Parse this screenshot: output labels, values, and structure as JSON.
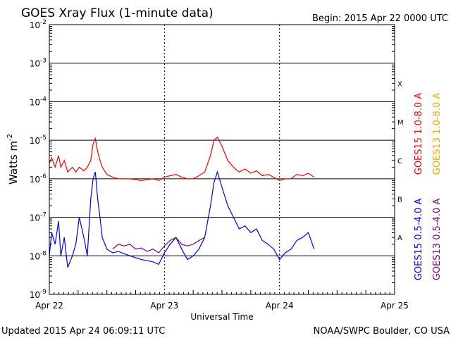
{
  "chart_data": {
    "type": "line",
    "title": "GOES Xray Flux (1-minute data)",
    "begin_label": "Begin:  2015 Apr 22 0000 UTC",
    "xlabel": "Universal Time",
    "ylabel_base": "Watts m",
    "ylabel_exp": "-2",
    "x_ticks": [
      "Apr 22",
      "Apr 23",
      "Apr 24",
      "Apr 25"
    ],
    "xlim_days": [
      0,
      3
    ],
    "y_scale": "log",
    "ylim": [
      1e-09,
      0.01
    ],
    "y_ticks": [
      {
        "base": "10",
        "exp": "-2",
        "value": 0.01
      },
      {
        "base": "10",
        "exp": "-3",
        "value": 0.001
      },
      {
        "base": "10",
        "exp": "-4",
        "value": 0.0001
      },
      {
        "base": "10",
        "exp": "-5",
        "value": 1e-05
      },
      {
        "base": "10",
        "exp": "-6",
        "value": 1e-06
      },
      {
        "base": "10",
        "exp": "-7",
        "value": 1e-07
      },
      {
        "base": "10",
        "exp": "-8",
        "value": 1e-08
      },
      {
        "base": "10",
        "exp": "-9",
        "value": 1e-09
      }
    ],
    "flare_classes": [
      {
        "label": "X",
        "value": 0.0003
      },
      {
        "label": "M",
        "value": 3e-05
      },
      {
        "label": "C",
        "value": 3e-06
      },
      {
        "label": "B",
        "value": 3e-07
      },
      {
        "label": "A",
        "value": 3e-08
      }
    ],
    "grid": true,
    "legend_position": "right",
    "series": [
      {
        "name": "GOES15 1.0-8.0 A",
        "color": "#ff0000",
        "x": [
          0.0,
          0.02,
          0.05,
          0.08,
          0.1,
          0.13,
          0.16,
          0.2,
          0.23,
          0.26,
          0.3,
          0.33,
          0.36,
          0.38,
          0.4,
          0.42,
          0.44,
          0.46,
          0.5,
          0.55,
          0.6,
          0.7,
          0.8,
          0.9,
          0.95,
          1.0,
          1.05,
          1.1,
          1.15,
          1.2,
          1.25,
          1.3,
          1.35,
          1.4,
          1.43,
          1.46,
          1.5,
          1.55,
          1.6,
          1.65,
          1.7,
          1.75,
          1.8,
          1.85,
          1.9,
          1.95,
          2.0,
          2.05,
          2.1,
          2.15,
          2.2,
          2.25,
          2.3
        ],
        "y": [
          2.5e-06,
          3.5e-06,
          2e-06,
          4e-06,
          2e-06,
          3e-06,
          1.5e-06,
          2e-06,
          1.5e-06,
          2e-06,
          1.6e-06,
          2e-06,
          3e-06,
          8e-06,
          1.1e-05,
          5e-06,
          3e-06,
          2e-06,
          1.3e-06,
          1.1e-06,
          1e-06,
          1e-06,
          9e-07,
          1e-06,
          9e-07,
          1.1e-06,
          1.2e-06,
          1.3e-06,
          1.1e-06,
          1e-06,
          1e-06,
          1.2e-06,
          1.5e-06,
          4e-06,
          1e-05,
          1.2e-05,
          7e-06,
          3e-06,
          2e-06,
          1.5e-06,
          1.8e-06,
          1.4e-06,
          1.6e-06,
          1.2e-06,
          1.3e-06,
          1.1e-06,
          9e-07,
          1e-06,
          1e-06,
          1.3e-06,
          1.2e-06,
          1.4e-06,
          1.1e-06
        ]
      },
      {
        "name": "GOES13 1.0-8.0 A",
        "color": "#ffa500",
        "x": [],
        "y": []
      },
      {
        "name": "GOES15 0.5-4.0 A",
        "color": "#0000ff",
        "x": [
          0.0,
          0.02,
          0.05,
          0.08,
          0.1,
          0.13,
          0.16,
          0.2,
          0.23,
          0.26,
          0.3,
          0.33,
          0.36,
          0.38,
          0.4,
          0.42,
          0.44,
          0.46,
          0.5,
          0.55,
          0.6,
          0.7,
          0.8,
          0.9,
          0.95,
          1.0,
          1.05,
          1.1,
          1.15,
          1.2,
          1.25,
          1.3,
          1.35,
          1.4,
          1.43,
          1.46,
          1.5,
          1.55,
          1.6,
          1.65,
          1.7,
          1.75,
          1.8,
          1.85,
          1.9,
          1.95,
          2.0,
          2.05,
          2.1,
          2.15,
          2.2,
          2.25,
          2.3
        ],
        "y": [
          1e-08,
          4e-08,
          2e-08,
          8e-08,
          1e-08,
          3e-08,
          5e-09,
          1e-08,
          2e-08,
          1e-07,
          3e-08,
          1e-08,
          3e-07,
          1e-06,
          1.5e-06,
          3e-07,
          1e-07,
          3e-08,
          1.5e-08,
          1.2e-08,
          1.3e-08,
          1e-08,
          8e-09,
          7e-09,
          6e-09,
          1.2e-08,
          2e-08,
          3e-08,
          1.5e-08,
          8e-09,
          1e-08,
          1.5e-08,
          3e-08,
          2e-07,
          8e-07,
          1.5e-06,
          6e-07,
          2e-07,
          1e-07,
          5e-08,
          6e-08,
          4e-08,
          5e-08,
          2.5e-08,
          2e-08,
          1.5e-08,
          8e-09,
          1.2e-08,
          1.5e-08,
          2.5e-08,
          3e-08,
          4e-08,
          1.5e-08
        ]
      },
      {
        "name": "GOES13 0.5-4.0 A",
        "color": "#800080",
        "x": [
          0.55,
          0.6,
          0.65,
          0.7,
          0.75,
          0.8,
          0.85,
          0.9,
          0.95,
          1.0,
          1.05,
          1.1,
          1.15,
          1.2,
          1.25,
          1.3,
          1.35
        ],
        "y": [
          1.5e-08,
          2e-08,
          1.8e-08,
          2e-08,
          1.5e-08,
          1.6e-08,
          1.3e-08,
          1.5e-08,
          1.2e-08,
          1.8e-08,
          2.5e-08,
          3e-08,
          2e-08,
          1.8e-08,
          2e-08,
          2.5e-08,
          3e-08
        ]
      }
    ]
  },
  "footer": {
    "updated": "Updated 2015 Apr 24 06:09:11 UTC",
    "credit": "NOAA/SWPC Boulder, CO USA"
  }
}
